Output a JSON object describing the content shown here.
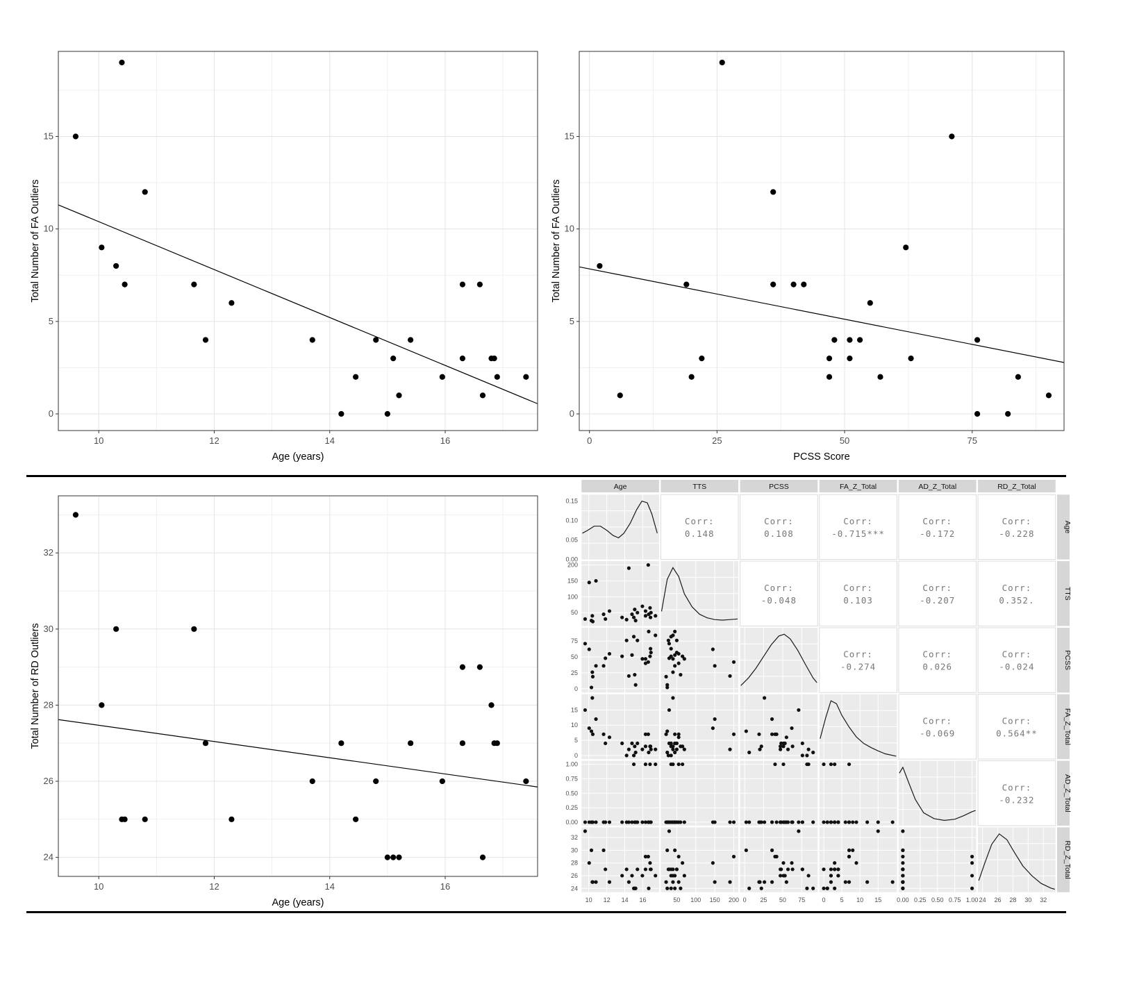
{
  "figure": {
    "background": "#ffffff",
    "divider_color": "#000000",
    "point_color": "#000000",
    "panel_border_color": "#333333",
    "grid_major_color": "#e4e4e4",
    "grid_minor_color": "#f0f0f0",
    "gg_panel_color": "#ebebeb",
    "strip_color": "#d6d6d6"
  },
  "chart_data": [
    {
      "id": "fa-age",
      "type": "scatter",
      "title": "",
      "xlabel": "Age (years)",
      "ylabel": "Total Number of FA Outliers",
      "xlim": [
        9.3,
        17.6
      ],
      "ylim": [
        -0.9,
        19.6
      ],
      "xticks": [
        10,
        12,
        14,
        16
      ],
      "yticks": [
        0,
        5,
        10,
        15
      ],
      "points": [
        [
          9.6,
          15
        ],
        [
          10.05,
          9
        ],
        [
          10.3,
          8
        ],
        [
          10.4,
          19
        ],
        [
          10.45,
          7
        ],
        [
          10.8,
          12
        ],
        [
          11.65,
          7
        ],
        [
          11.85,
          4
        ],
        [
          12.3,
          6
        ],
        [
          13.7,
          4
        ],
        [
          14.2,
          0
        ],
        [
          14.45,
          2
        ],
        [
          14.8,
          4
        ],
        [
          15.0,
          0
        ],
        [
          15.1,
          3
        ],
        [
          15.2,
          1
        ],
        [
          15.4,
          4
        ],
        [
          15.95,
          2
        ],
        [
          16.3,
          3
        ],
        [
          16.3,
          7
        ],
        [
          16.6,
          7
        ],
        [
          16.65,
          1
        ],
        [
          16.8,
          3
        ],
        [
          16.85,
          3
        ],
        [
          16.9,
          2
        ],
        [
          17.4,
          2
        ]
      ],
      "trend": [
        [
          9.3,
          11.3
        ],
        [
          17.6,
          0.55
        ]
      ]
    },
    {
      "id": "fa-pcss",
      "type": "scatter",
      "title": "",
      "xlabel": "PCSS Score",
      "ylabel": "Total Number of FA Outliers",
      "xlim": [
        -2,
        93
      ],
      "ylim": [
        -0.9,
        19.6
      ],
      "xticks": [
        0,
        25,
        50,
        75
      ],
      "yticks": [
        0,
        5,
        10,
        15
      ],
      "points": [
        [
          2,
          8
        ],
        [
          6,
          1
        ],
        [
          19,
          7
        ],
        [
          20,
          2
        ],
        [
          22,
          3
        ],
        [
          26,
          19
        ],
        [
          36,
          12
        ],
        [
          36,
          7
        ],
        [
          40,
          7
        ],
        [
          42,
          7
        ],
        [
          47,
          3
        ],
        [
          47,
          2
        ],
        [
          48,
          4
        ],
        [
          51,
          4
        ],
        [
          51,
          3
        ],
        [
          53,
          4
        ],
        [
          55,
          6
        ],
        [
          57,
          2
        ],
        [
          62,
          9
        ],
        [
          63,
          3
        ],
        [
          71,
          15
        ],
        [
          76,
          4
        ],
        [
          76,
          0
        ],
        [
          82,
          0
        ],
        [
          84,
          2
        ],
        [
          90,
          1
        ]
      ],
      "trend": [
        [
          -2,
          7.95
        ],
        [
          93,
          2.78
        ]
      ]
    },
    {
      "id": "rd-age",
      "type": "scatter",
      "title": "",
      "xlabel": "Age (years)",
      "ylabel": "Total Number of RD Outliers",
      "xlim": [
        9.3,
        17.6
      ],
      "ylim": [
        23.5,
        33.5
      ],
      "xticks": [
        10,
        12,
        14,
        16
      ],
      "yticks": [
        24,
        26,
        28,
        30,
        32
      ],
      "points": [
        [
          9.6,
          33
        ],
        [
          10.05,
          28
        ],
        [
          10.3,
          30
        ],
        [
          10.4,
          25
        ],
        [
          10.45,
          25
        ],
        [
          10.8,
          25
        ],
        [
          11.65,
          30
        ],
        [
          11.85,
          27
        ],
        [
          12.3,
          25
        ],
        [
          13.7,
          26
        ],
        [
          14.2,
          27
        ],
        [
          14.45,
          25
        ],
        [
          14.8,
          26
        ],
        [
          15.0,
          24
        ],
        [
          15.1,
          24
        ],
        [
          15.2,
          24
        ],
        [
          15.4,
          27
        ],
        [
          15.95,
          26
        ],
        [
          16.3,
          27
        ],
        [
          16.3,
          29
        ],
        [
          16.6,
          29
        ],
        [
          16.65,
          24
        ],
        [
          16.8,
          28
        ],
        [
          16.85,
          27
        ],
        [
          16.9,
          27
        ],
        [
          17.4,
          26
        ]
      ],
      "trend": [
        [
          9.3,
          27.62
        ],
        [
          17.6,
          25.85
        ]
      ]
    },
    {
      "id": "ggpairs",
      "type": "matrix",
      "corr_prefix": "Corr:",
      "variables": [
        "Age",
        "TTS",
        "PCSS",
        "FA_Z_Total",
        "AD_Z_Total",
        "RD_Z_Total"
      ],
      "limits": {
        "Age": [
          9.2,
          17.8
        ],
        "TTS": [
          8,
          212
        ],
        "PCSS": [
          -6,
          96
        ],
        "FA_Z_Total": [
          -1.2,
          20.2
        ],
        "AD_Z_Total": [
          -0.06,
          1.06
        ],
        "RD_Z_Total": [
          23.4,
          33.6
        ]
      },
      "ticks": {
        "Age": [
          "10",
          "12",
          "14",
          "16"
        ],
        "TTS": [
          "50",
          "100",
          "150",
          "200"
        ],
        "PCSS": [
          "0",
          "25",
          "50",
          "75"
        ],
        "FA_Z_Total": [
          "0",
          "5",
          "10",
          "15"
        ],
        "AD_Z_Total": [
          "0.00",
          "0.25",
          "0.50",
          "0.75",
          "1.00"
        ],
        "RD_Z_Total": [
          "24",
          "26",
          "28",
          "30",
          "32"
        ]
      },
      "density_axis_ticks": [
        "0.00",
        "0.05",
        "0.10",
        "0.15"
      ],
      "density_axis_max": 0.15,
      "correlations": [
        [
          "0.148",
          "0.108",
          "-0.715***",
          "-0.172",
          "-0.228"
        ],
        [
          "-0.048",
          "0.103",
          "-0.207",
          "0.352."
        ],
        [
          "-0.274",
          "0.026",
          "-0.024"
        ],
        [
          "-0.069",
          "0.564**"
        ],
        [
          "-0.232"
        ]
      ],
      "densities": {
        "Age": [
          [
            9.3,
            0.45
          ],
          [
            9.9,
            0.5
          ],
          [
            10.6,
            0.57
          ],
          [
            11.3,
            0.57
          ],
          [
            12.0,
            0.5
          ],
          [
            12.7,
            0.41
          ],
          [
            13.3,
            0.37
          ],
          [
            13.9,
            0.45
          ],
          [
            14.6,
            0.62
          ],
          [
            15.3,
            0.85
          ],
          [
            15.9,
            1.0
          ],
          [
            16.5,
            0.97
          ],
          [
            17.0,
            0.78
          ],
          [
            17.6,
            0.45
          ]
        ],
        "TTS": [
          [
            10,
            0.25
          ],
          [
            25,
            0.8
          ],
          [
            40,
            1.0
          ],
          [
            55,
            0.85
          ],
          [
            70,
            0.55
          ],
          [
            90,
            0.33
          ],
          [
            110,
            0.2
          ],
          [
            130,
            0.14
          ],
          [
            150,
            0.11
          ],
          [
            170,
            0.1
          ],
          [
            190,
            0.11
          ],
          [
            210,
            0.12
          ]
        ],
        "PCSS": [
          [
            -5,
            0.12
          ],
          [
            5,
            0.25
          ],
          [
            15,
            0.42
          ],
          [
            25,
            0.62
          ],
          [
            35,
            0.82
          ],
          [
            45,
            0.97
          ],
          [
            52,
            1.0
          ],
          [
            60,
            0.92
          ],
          [
            70,
            0.72
          ],
          [
            80,
            0.48
          ],
          [
            90,
            0.25
          ],
          [
            95,
            0.17
          ]
        ],
        "FA_Z_Total": [
          [
            -1,
            0.35
          ],
          [
            0.5,
            0.7
          ],
          [
            2,
            1.0
          ],
          [
            3.5,
            0.95
          ],
          [
            5,
            0.75
          ],
          [
            7,
            0.55
          ],
          [
            9,
            0.38
          ],
          [
            11,
            0.27
          ],
          [
            13,
            0.2
          ],
          [
            15,
            0.14
          ],
          [
            17,
            0.09
          ],
          [
            20,
            0.05
          ]
        ],
        "AD_Z_Total": [
          [
            -0.05,
            0.9
          ],
          [
            0,
            1.0
          ],
          [
            0.08,
            0.75
          ],
          [
            0.18,
            0.45
          ],
          [
            0.3,
            0.22
          ],
          [
            0.45,
            0.12
          ],
          [
            0.6,
            0.09
          ],
          [
            0.75,
            0.11
          ],
          [
            0.88,
            0.17
          ],
          [
            1.0,
            0.24
          ],
          [
            1.05,
            0.26
          ]
        ],
        "RD_Z_Total": [
          [
            23.5,
            0.2
          ],
          [
            24.3,
            0.5
          ],
          [
            25.2,
            0.82
          ],
          [
            26.2,
            1.0
          ],
          [
            27.2,
            0.9
          ],
          [
            28.2,
            0.68
          ],
          [
            29.3,
            0.45
          ],
          [
            30.5,
            0.28
          ],
          [
            31.7,
            0.15
          ],
          [
            33.0,
            0.07
          ],
          [
            33.5,
            0.05
          ]
        ]
      },
      "subjects": [
        [
          9.6,
          30,
          71,
          15,
          0,
          33
        ],
        [
          10.05,
          145,
          62,
          9,
          0,
          28
        ],
        [
          10.3,
          25,
          2,
          8,
          0,
          30
        ],
        [
          10.4,
          40,
          26,
          19,
          0,
          25
        ],
        [
          10.45,
          22,
          19,
          7,
          0,
          25
        ],
        [
          10.8,
          150,
          36,
          12,
          0,
          25
        ],
        [
          11.65,
          45,
          36,
          7,
          0,
          30
        ],
        [
          11.85,
          30,
          48,
          4,
          0,
          27
        ],
        [
          12.3,
          55,
          55,
          6,
          0,
          25
        ],
        [
          13.7,
          35,
          51,
          4,
          0,
          26
        ],
        [
          14.2,
          28,
          76,
          0,
          0,
          27
        ],
        [
          14.45,
          190,
          20,
          2,
          0,
          25
        ],
        [
          14.8,
          45,
          53,
          4,
          0,
          26
        ],
        [
          15.0,
          35,
          82,
          0,
          1,
          24
        ],
        [
          15.1,
          60,
          22,
          3,
          0,
          24
        ],
        [
          15.2,
          25,
          6,
          1,
          0,
          24
        ],
        [
          15.4,
          50,
          76,
          4,
          0,
          27
        ],
        [
          15.95,
          70,
          47,
          2,
          0,
          26
        ],
        [
          16.3,
          40,
          47,
          3,
          0,
          27
        ],
        [
          16.3,
          55,
          40,
          7,
          1,
          29
        ],
        [
          16.6,
          200,
          42,
          7,
          0,
          29
        ],
        [
          16.65,
          45,
          90,
          1,
          0,
          24
        ],
        [
          16.8,
          65,
          51,
          3,
          1,
          28
        ],
        [
          16.85,
          35,
          63,
          3,
          0,
          27
        ],
        [
          16.9,
          50,
          57,
          2,
          0,
          27
        ],
        [
          17.4,
          40,
          84,
          2,
          1,
          26
        ]
      ]
    }
  ]
}
